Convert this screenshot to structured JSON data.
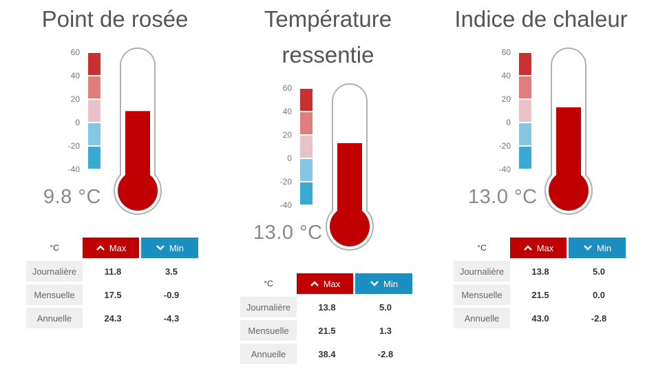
{
  "colors": {
    "accent_red": "#c00000",
    "accent_blue": "#1b8fc2",
    "scale_colors": [
      "#c93030",
      "#e07e7e",
      "#e8c2c8",
      "#84c7e3",
      "#3aaad3"
    ]
  },
  "scale_ticks": [
    "60",
    "40",
    "20",
    "0",
    "-20",
    "-40"
  ],
  "table_header": {
    "unit": "°C",
    "max_label": "Max",
    "min_label": "Min"
  },
  "row_labels": [
    "Journalière",
    "Mensuelle",
    "Annuelle"
  ],
  "panels": [
    {
      "title": "Point de rosée",
      "current": "9.8 °C",
      "current_value": 9.8,
      "rows": [
        {
          "max": "11.8",
          "min": "3.5"
        },
        {
          "max": "17.5",
          "min": "-0.9"
        },
        {
          "max": "24.3",
          "min": "-4.3"
        }
      ]
    },
    {
      "title_line1": "Température",
      "title_line2": "ressentie",
      "current": "13.0 °C",
      "current_value": 13.0,
      "rows": [
        {
          "max": "13.8",
          "min": "5.0"
        },
        {
          "max": "21.5",
          "min": "1.3"
        },
        {
          "max": "38.4",
          "min": "-2.8"
        }
      ]
    },
    {
      "title": "Indice de chaleur",
      "current": "13.0 °C",
      "current_value": 13.0,
      "rows": [
        {
          "max": "13.8",
          "min": "5.0"
        },
        {
          "max": "21.5",
          "min": "0.0"
        },
        {
          "max": "43.0",
          "min": "-2.8"
        }
      ]
    }
  ]
}
